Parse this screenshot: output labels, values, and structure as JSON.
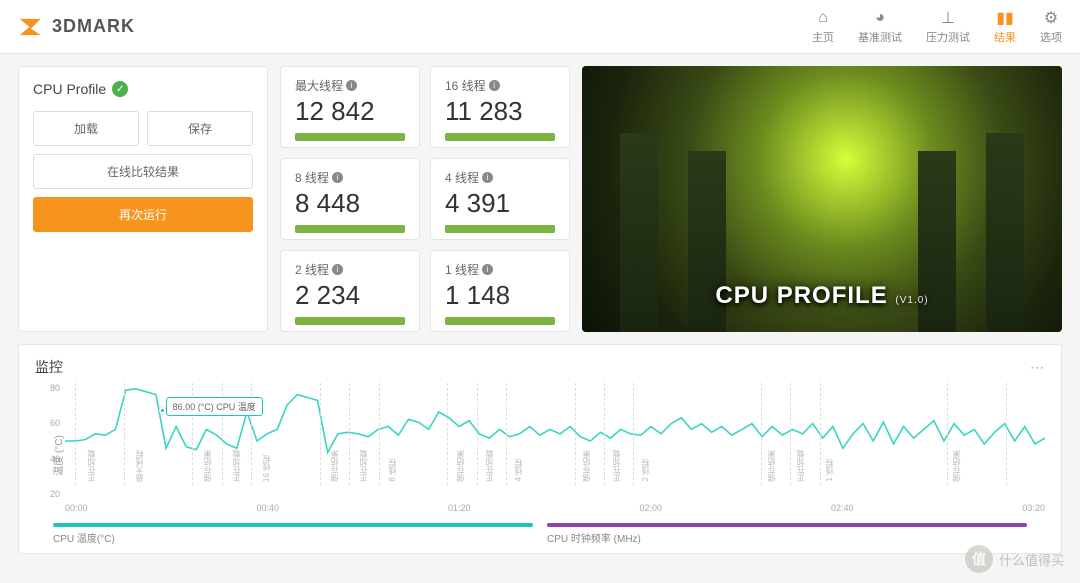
{
  "header": {
    "logo_text": "3DMARK",
    "logo_color": "#f7941e",
    "nav": [
      {
        "icon": "home",
        "label": "主页"
      },
      {
        "icon": "gauge",
        "label": "基准测试"
      },
      {
        "icon": "stress",
        "label": "压力测试"
      },
      {
        "icon": "results",
        "label": "结果",
        "active": true
      },
      {
        "icon": "gear",
        "label": "选项"
      }
    ]
  },
  "left_panel": {
    "title": "CPU Profile",
    "buttons": {
      "load": "加载",
      "save": "保存",
      "compare": "在线比较结果",
      "rerun": "再次运行"
    }
  },
  "scores": [
    {
      "label": "最大线程",
      "value": "12 842",
      "fill": 100
    },
    {
      "label": "16 线程",
      "value": "11 283",
      "fill": 100
    },
    {
      "label": "8 线程",
      "value": "8 448",
      "fill": 100
    },
    {
      "label": "4 线程",
      "value": "4 391",
      "fill": 100
    },
    {
      "label": "2 线程",
      "value": "2 234",
      "fill": 100
    },
    {
      "label": "1 线程",
      "value": "1 148",
      "fill": 100
    }
  ],
  "preview": {
    "title": "CPU PROFILE",
    "version": "(V1.0)"
  },
  "monitor": {
    "title": "监控",
    "y_label": "温度 (°C)",
    "y_ticks": [
      "80",
      "60",
      "40",
      "20"
    ],
    "x_ticks": [
      "00:00",
      "00:40",
      "01:20",
      "02:00",
      "02:40",
      "03:20"
    ],
    "tooltip": "86.00 (°C) CPU 温度",
    "line_color": "#3ad4c4",
    "phase_labels": [
      "正在加载",
      "最大线程",
      "储存结果",
      "正在加载",
      "16 线程",
      "储存结果",
      "正在加载",
      "8 线程",
      "储存结果",
      "正在加载",
      "4 线程",
      "储存结果",
      "正在加载",
      "2 线程",
      "储存结果",
      "正在加载",
      "1 线程",
      "储存结果"
    ],
    "phase_positions": [
      1,
      6,
      13,
      16,
      19,
      26,
      29,
      32,
      39,
      42,
      45,
      52,
      55,
      58,
      71,
      74,
      77,
      90,
      96
    ],
    "series": [
      50,
      50,
      51,
      55,
      54,
      58,
      85,
      86,
      84,
      82,
      45,
      60,
      46,
      44,
      58,
      54,
      48,
      45,
      70,
      50,
      55,
      58,
      75,
      82,
      80,
      78,
      42,
      55,
      56,
      55,
      53,
      58,
      60,
      54,
      65,
      63,
      58,
      70,
      66,
      60,
      64,
      55,
      52,
      58,
      53,
      55,
      60,
      54,
      58,
      55,
      60,
      53,
      50,
      56,
      52,
      58,
      55,
      54,
      60,
      55,
      62,
      66,
      58,
      62,
      56,
      60,
      54,
      58,
      62,
      53,
      60,
      54,
      58,
      55,
      62,
      52,
      60,
      45,
      55,
      62,
      50,
      63,
      48,
      60,
      52,
      58,
      64,
      50,
      62,
      54,
      58,
      48,
      56,
      62,
      50,
      60,
      48,
      52
    ]
  },
  "legend": {
    "items": [
      {
        "label": "CPU 温度(°C)",
        "color": "#20c4b8"
      },
      {
        "label": "CPU 时钟频率 (MHz)",
        "color": "#8e44ad"
      }
    ]
  },
  "watermark": {
    "badge": "值",
    "text": "什么值得买"
  }
}
